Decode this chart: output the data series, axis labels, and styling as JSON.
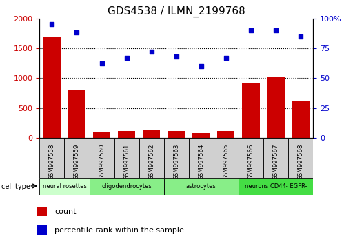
{
  "title": "GDS4538 / ILMN_2199768",
  "samples": [
    "GSM997558",
    "GSM997559",
    "GSM997560",
    "GSM997561",
    "GSM997562",
    "GSM997563",
    "GSM997564",
    "GSM997565",
    "GSM997566",
    "GSM997567",
    "GSM997568"
  ],
  "counts": [
    1680,
    790,
    90,
    110,
    140,
    120,
    80,
    115,
    910,
    1010,
    610
  ],
  "percentile": [
    95,
    88,
    62,
    67,
    72,
    68,
    60,
    67,
    90,
    90,
    85
  ],
  "ylim_left": [
    0,
    2000
  ],
  "ylim_right": [
    0,
    100
  ],
  "yticks_left": [
    0,
    500,
    1000,
    1500,
    2000
  ],
  "yticks_right": [
    0,
    25,
    50,
    75,
    100
  ],
  "ytick_labels_right": [
    "0",
    "25",
    "50",
    "75",
    "100%"
  ],
  "bar_color": "#cc0000",
  "scatter_color": "#0000cc",
  "cell_types": [
    {
      "label": "neural rosettes",
      "start": 0,
      "end": 2,
      "color": "#ccffcc"
    },
    {
      "label": "oligodendrocytes",
      "start": 2,
      "end": 5,
      "color": "#88ee88"
    },
    {
      "label": "astrocytes",
      "start": 5,
      "end": 8,
      "color": "#88ee88"
    },
    {
      "label": "neurons CD44- EGFR-",
      "start": 8,
      "end": 11,
      "color": "#44dd44"
    }
  ],
  "tick_label_color_left": "#cc0000",
  "tick_label_color_right": "#0000cc",
  "legend_count_color": "#cc0000",
  "legend_pct_color": "#0000cc",
  "hgrid_values": [
    500,
    1000,
    1500
  ],
  "cell_type_colors": [
    "#ccffcc",
    "#88ee88",
    "#88ee88",
    "#44dd44"
  ]
}
